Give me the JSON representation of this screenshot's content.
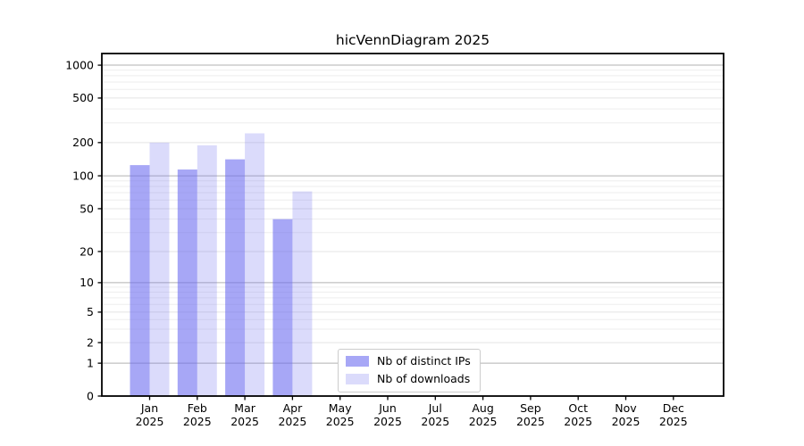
{
  "chart_data": {
    "type": "bar",
    "title": "hicVennDiagram 2025",
    "categories": [
      "Jan",
      "Feb",
      "Mar",
      "Apr",
      "May",
      "Jun",
      "Jul",
      "Aug",
      "Sep",
      "Oct",
      "Nov",
      "Dec"
    ],
    "year_label": "2025",
    "series": [
      {
        "name": "Nb of distinct IPs",
        "color": "rgba(103,103,240,0.58)",
        "values": [
          125,
          114,
          141,
          40,
          0,
          0,
          0,
          0,
          0,
          0,
          0,
          0
        ]
      },
      {
        "name": "Nb of downloads",
        "color": "rgba(103,103,240,0.24)",
        "values": [
          200,
          189,
          242,
          72,
          0,
          0,
          0,
          0,
          0,
          0,
          0,
          0
        ]
      }
    ],
    "y_axis": {
      "scale": "log",
      "ticks": [
        0,
        1,
        2,
        5,
        10,
        20,
        50,
        100,
        200,
        500,
        1000
      ],
      "major_grid_at": [
        1,
        10,
        100,
        1000
      ],
      "grid": true,
      "minor_grid": true
    },
    "legend": {
      "position": "inside-bottom-center"
    },
    "colors": {
      "grid_major": "#b2b2b2",
      "grid_tick": "#e4e4e4",
      "grid_minor": "#eeeeee",
      "axis_frame": "#000000",
      "text": "#000000",
      "background": "#ffffff"
    }
  }
}
